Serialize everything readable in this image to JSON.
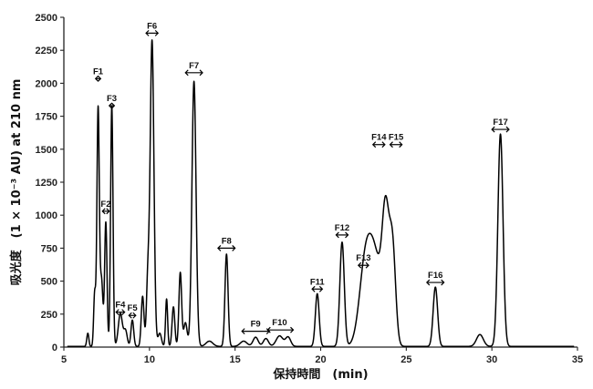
{
  "chart_data": {
    "type": "line",
    "title": "",
    "xlabel": "保持時間　(min)",
    "ylabel": "吸光度　(1 × 10⁻³ AU) at 210 nm",
    "xlim": [
      5,
      35
    ],
    "ylim": [
      0,
      2500
    ],
    "x_ticks": [
      "5",
      "10",
      "15",
      "20",
      "25",
      "30",
      "35"
    ],
    "y_ticks": [
      "0",
      "250",
      "500",
      "750",
      "1000",
      "1250",
      "1500",
      "1750",
      "2000",
      "2250",
      "2500"
    ],
    "grid": false,
    "series": [
      {
        "peaks": [
          {
            "x": 6.4,
            "y": 100,
            "w": 0.06
          },
          {
            "x": 6.8,
            "y": 400,
            "w": 0.06
          },
          {
            "x": 7.0,
            "y": 1800,
            "w": 0.07
          },
          {
            "x": 7.2,
            "y": 500,
            "w": 0.08
          },
          {
            "x": 7.45,
            "y": 940,
            "w": 0.07
          },
          {
            "x": 7.8,
            "y": 1820,
            "w": 0.07
          },
          {
            "x": 8.3,
            "y": 250,
            "w": 0.12
          },
          {
            "x": 8.6,
            "y": 120,
            "w": 0.1
          },
          {
            "x": 9.0,
            "y": 200,
            "w": 0.08
          },
          {
            "x": 9.6,
            "y": 380,
            "w": 0.08
          },
          {
            "x": 9.9,
            "y": 470,
            "w": 0.08
          },
          {
            "x": 10.15,
            "y": 2320,
            "w": 0.11
          },
          {
            "x": 10.6,
            "y": 100,
            "w": 0.1
          },
          {
            "x": 11.0,
            "y": 360,
            "w": 0.06
          },
          {
            "x": 11.4,
            "y": 300,
            "w": 0.08
          },
          {
            "x": 11.8,
            "y": 560,
            "w": 0.08
          },
          {
            "x": 12.1,
            "y": 180,
            "w": 0.1
          },
          {
            "x": 12.6,
            "y": 2010,
            "w": 0.12
          },
          {
            "x": 13.5,
            "y": 40,
            "w": 0.2
          },
          {
            "x": 14.5,
            "y": 700,
            "w": 0.09
          },
          {
            "x": 15.5,
            "y": 40,
            "w": 0.2
          },
          {
            "x": 16.2,
            "y": 70,
            "w": 0.15
          },
          {
            "x": 16.8,
            "y": 60,
            "w": 0.15
          },
          {
            "x": 17.6,
            "y": 80,
            "w": 0.2
          },
          {
            "x": 18.1,
            "y": 70,
            "w": 0.15
          },
          {
            "x": 19.8,
            "y": 400,
            "w": 0.11
          },
          {
            "x": 21.25,
            "y": 790,
            "w": 0.13
          },
          {
            "x": 22.6,
            "y": 560,
            "w": 0.35
          },
          {
            "x": 23.2,
            "y": 620,
            "w": 0.4
          },
          {
            "x": 23.8,
            "y": 880,
            "w": 0.2
          },
          {
            "x": 24.2,
            "y": 720,
            "w": 0.18
          },
          {
            "x": 26.7,
            "y": 450,
            "w": 0.13
          },
          {
            "x": 29.3,
            "y": 90,
            "w": 0.2
          },
          {
            "x": 30.5,
            "y": 1610,
            "w": 0.15
          }
        ],
        "baseline": 5
      }
    ],
    "fractions": [
      {
        "label": "F1",
        "x": 7.0,
        "y": 2035,
        "x1": 6.85,
        "x2": 7.15
      },
      {
        "label": "F2",
        "x": 7.45,
        "y": 1030,
        "x1": 7.25,
        "x2": 7.65
      },
      {
        "label": "F3",
        "x": 7.8,
        "y": 1830,
        "x1": 7.65,
        "x2": 7.95
      },
      {
        "label": "F4",
        "x": 8.3,
        "y": 265,
        "x1": 8.05,
        "x2": 8.55
      },
      {
        "label": "F5",
        "x": 9.0,
        "y": 240,
        "x1": 8.8,
        "x2": 9.2
      },
      {
        "label": "F6",
        "x": 10.15,
        "y": 2380,
        "x1": 9.8,
        "x2": 10.5
      },
      {
        "label": "F7",
        "x": 12.6,
        "y": 2080,
        "x1": 12.1,
        "x2": 13.1
      },
      {
        "label": "F8",
        "x": 14.5,
        "y": 750,
        "x1": 14.0,
        "x2": 15.0
      },
      {
        "label": "F9",
        "x": 16.2,
        "y": 120,
        "x1": 15.4,
        "x2": 17.0
      },
      {
        "label": "F10",
        "x": 17.6,
        "y": 130,
        "x1": 16.9,
        "x2": 18.4
      },
      {
        "label": "F11",
        "x": 19.8,
        "y": 440,
        "x1": 19.5,
        "x2": 20.1
      },
      {
        "label": "F12",
        "x": 21.25,
        "y": 850,
        "x1": 20.9,
        "x2": 21.6
      },
      {
        "label": "F13",
        "x": 22.5,
        "y": 620,
        "x1": 22.2,
        "x2": 22.8
      },
      {
        "label": "F14",
        "x": 23.4,
        "y": 1535,
        "x1": 23.05,
        "x2": 23.75
      },
      {
        "label": "F15",
        "x": 24.4,
        "y": 1535,
        "x1": 24.05,
        "x2": 24.75
      },
      {
        "label": "F16",
        "x": 26.7,
        "y": 490,
        "x1": 26.2,
        "x2": 27.2
      },
      {
        "label": "F17",
        "x": 30.5,
        "y": 1650,
        "x1": 30.0,
        "x2": 31.0
      }
    ]
  }
}
